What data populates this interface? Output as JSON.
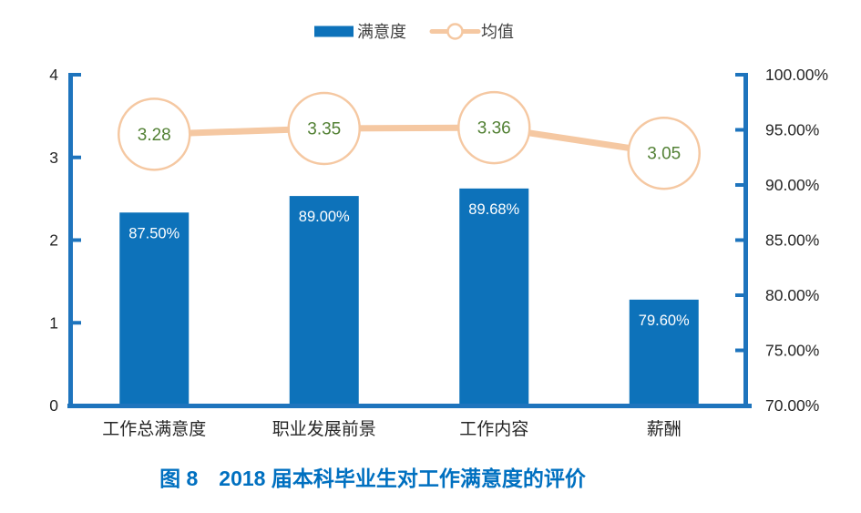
{
  "figure": {
    "caption": "图 8　2018 届本科毕业生对工作满意度的评价"
  },
  "legend": {
    "bar_label": "满意度",
    "line_label": "均值"
  },
  "colors": {
    "bar_fill": "#0d72ba",
    "axis_stroke": "#1e74bd",
    "mean_line": "#f5c8a2",
    "marker_fill": "#ffffff",
    "mean_text": "#538135",
    "bar_label_text": "#ffffff",
    "tick_text": "#262626",
    "legend_text": "#3f3f3f",
    "caption_text": "#0070c0"
  },
  "chart_data": {
    "type": "bar",
    "subtype": "bar-line-combo",
    "title": "图 8　2018 届本科毕业生对工作满意度的评价",
    "categories": [
      "工作总满意度",
      "职业发展前景",
      "工作内容",
      "薪酬"
    ],
    "series": [
      {
        "name": "满意度",
        "type": "bar",
        "axis": "right",
        "values": [
          87.5,
          89.0,
          89.68,
          79.6
        ],
        "labels": [
          "87.50%",
          "89.00%",
          "89.68%",
          "79.60%"
        ]
      },
      {
        "name": "均值",
        "type": "line",
        "axis": "left",
        "values": [
          3.28,
          3.35,
          3.36,
          3.05
        ],
        "labels": [
          "3.28",
          "3.35",
          "3.36",
          "3.05"
        ]
      }
    ],
    "left_axis": {
      "min": 0,
      "max": 4,
      "step": 1,
      "tick_labels": [
        "0",
        "1",
        "2",
        "3",
        "4"
      ]
    },
    "right_axis": {
      "min": 70,
      "max": 100,
      "step": 5,
      "tick_labels": [
        "70.00%",
        "75.00%",
        "80.00%",
        "85.00%",
        "90.00%",
        "95.00%",
        "100.00%"
      ]
    },
    "grid": false,
    "legend_position": "top-center"
  }
}
